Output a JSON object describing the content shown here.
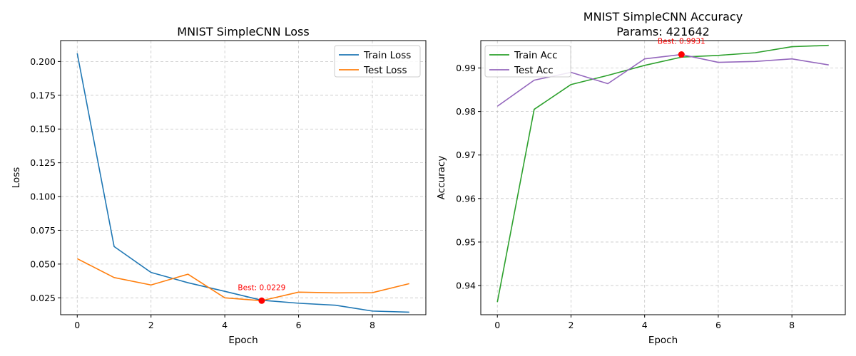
{
  "chart_data": [
    {
      "type": "line",
      "title": "MNIST SimpleCNN Loss",
      "xlabel": "Epoch",
      "ylabel": "Loss",
      "xlim": [
        -0.45,
        9.45
      ],
      "ylim": [
        0.0125,
        0.2155
      ],
      "xticks": [
        0,
        2,
        4,
        6,
        8
      ],
      "xtick_labels": [
        "0",
        "2",
        "4",
        "6",
        "8"
      ],
      "yticks": [
        0.025,
        0.05,
        0.075,
        0.1,
        0.125,
        0.15,
        0.175,
        0.2
      ],
      "ytick_labels": [
        "0.025",
        "0.050",
        "0.075",
        "0.100",
        "0.125",
        "0.150",
        "0.175",
        "0.200"
      ],
      "grid": true,
      "legend_position": "top-right",
      "x": [
        0,
        1,
        2,
        3,
        4,
        5,
        6,
        7,
        8,
        9
      ],
      "series": [
        {
          "name": "Train Loss",
          "color": "#1f77b4",
          "values": [
            0.206,
            0.063,
            0.0438,
            0.0362,
            0.0298,
            0.0232,
            0.021,
            0.0195,
            0.0152,
            0.0144
          ]
        },
        {
          "name": "Test Loss",
          "color": "#ff7f0e",
          "values": [
            0.054,
            0.04,
            0.0345,
            0.0425,
            0.025,
            0.0229,
            0.0292,
            0.0287,
            0.0288,
            0.0355
          ]
        }
      ],
      "annotation": {
        "text": "Best: 0.0229",
        "x": 5,
        "y": 0.0229,
        "color": "#ff0000"
      }
    },
    {
      "type": "line",
      "title": "MNIST SimpleCNN Accuracy",
      "subtitle": "Params: 421642",
      "xlabel": "Epoch",
      "ylabel": "Accuracy",
      "xlim": [
        -0.45,
        9.45
      ],
      "ylim": [
        0.9333,
        0.9963
      ],
      "xticks": [
        0,
        2,
        4,
        6,
        8
      ],
      "xtick_labels": [
        "0",
        "2",
        "4",
        "6",
        "8"
      ],
      "yticks": [
        0.94,
        0.95,
        0.96,
        0.97,
        0.98,
        0.99
      ],
      "ytick_labels": [
        "0.94",
        "0.95",
        "0.96",
        "0.97",
        "0.98",
        "0.99"
      ],
      "grid": true,
      "legend_position": "top-left",
      "x": [
        0,
        1,
        2,
        3,
        4,
        5,
        6,
        7,
        8,
        9
      ],
      "series": [
        {
          "name": "Train Acc",
          "color": "#2ca02c",
          "values": [
            0.9362,
            0.9805,
            0.9862,
            0.9883,
            0.9906,
            0.9925,
            0.9929,
            0.9935,
            0.9949,
            0.9952
          ]
        },
        {
          "name": "Test Acc",
          "color": "#9467bd",
          "values": [
            0.9812,
            0.9872,
            0.989,
            0.9864,
            0.9921,
            0.9931,
            0.9913,
            0.9915,
            0.9921,
            0.9907
          ]
        }
      ],
      "annotation": {
        "text": "Best: 0.9931",
        "x": 5,
        "y": 0.9931,
        "color": "#ff0000"
      }
    }
  ]
}
